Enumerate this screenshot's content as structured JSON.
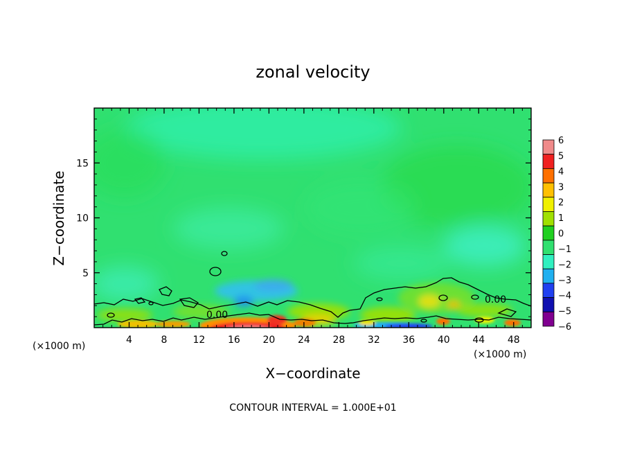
{
  "chart_data": {
    "type": "heatmap",
    "title": "zonal velocity",
    "xlabel": "X−coordinate",
    "ylabel": "Z−coordinate",
    "x_unit_left": "(×1000 m)",
    "x_unit_right": "(×1000 m)",
    "xlim": [
      0,
      50
    ],
    "ylim": [
      0,
      20
    ],
    "x_ticks": [
      4,
      8,
      12,
      16,
      20,
      24,
      28,
      32,
      36,
      40,
      44,
      48
    ],
    "x_tick_labels": [
      "4",
      "8",
      "12",
      "16",
      "20",
      "24",
      "28",
      "32",
      "36",
      "40",
      "44",
      "48"
    ],
    "y_ticks": [
      5,
      10,
      15
    ],
    "y_tick_labels": [
      "5",
      "10",
      "15"
    ],
    "colorbar": {
      "range": [
        -6,
        6
      ],
      "labels": [
        "6",
        "5",
        "4",
        "3",
        "2",
        "1",
        "0",
        "−1",
        "−2",
        "−3",
        "−4",
        "−5",
        "−6"
      ],
      "colors": [
        "#f08a8a",
        "#f02020",
        "#ff7000",
        "#ffc000",
        "#f0f000",
        "#a0e000",
        "#20d020",
        "#30e070",
        "#30f0c0",
        "#20b0f0",
        "#2040f0",
        "#1010b0",
        "#800090"
      ]
    },
    "contour_labels": [
      "0.00",
      "0.00"
    ],
    "contour_interval_text": "CONTOUR INTERVAL = 1.000E+01"
  }
}
